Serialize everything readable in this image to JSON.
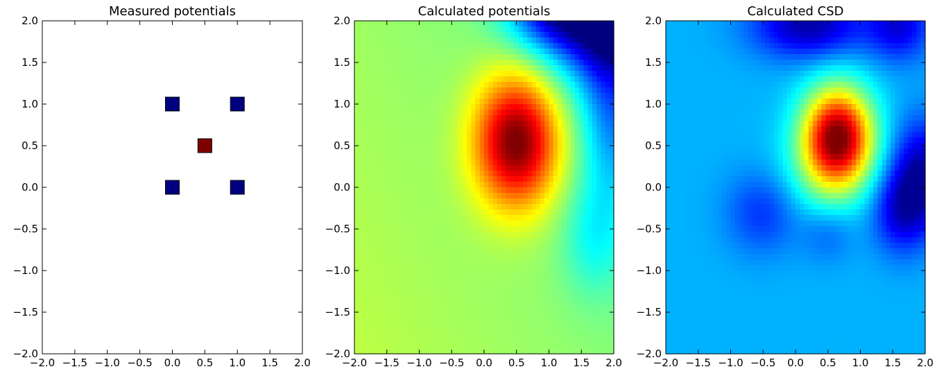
{
  "colormap": "jet",
  "chart_data": [
    {
      "type": "scatter",
      "title": "Measured potentials",
      "xlim": [
        -2.0,
        2.0
      ],
      "ylim": [
        -2.0,
        2.0
      ],
      "x_ticks": [
        "−2.0",
        "−1.5",
        "−1.0",
        "−0.5",
        "0.0",
        "0.5",
        "1.0",
        "1.5",
        "2.0"
      ],
      "y_ticks": [
        "2.0",
        "1.5",
        "1.0",
        "0.5",
        "0.0",
        "−0.5",
        "−1.0",
        "−1.5",
        "−2.0"
      ],
      "marker": "square",
      "points": [
        {
          "x": 0.0,
          "y": 1.0,
          "value": -1,
          "color": "#000080"
        },
        {
          "x": 1.0,
          "y": 1.0,
          "value": -1,
          "color": "#000080"
        },
        {
          "x": 0.5,
          "y": 0.5,
          "value": 1,
          "color": "#800000"
        },
        {
          "x": 0.0,
          "y": 0.0,
          "value": -1,
          "color": "#000080"
        },
        {
          "x": 1.0,
          "y": 0.0,
          "value": -1,
          "color": "#000080"
        }
      ]
    },
    {
      "type": "heatmap",
      "title": "Calculated potentials",
      "colormap": "jet",
      "xlim": [
        -2.0,
        2.0
      ],
      "ylim": [
        -2.0,
        2.0
      ],
      "x_ticks": [
        "−2.0",
        "−1.5",
        "−1.0",
        "−0.5",
        "0.0",
        "0.5",
        "1.0",
        "1.5",
        "2.0"
      ],
      "y_ticks": [
        "2.0",
        "1.5",
        "1.0",
        "0.5",
        "0.0",
        "−0.5",
        "−1.0",
        "−1.5",
        "−2.0"
      ],
      "features": [
        {
          "kind": "peak",
          "x": 0.5,
          "y": 0.55,
          "value": 1.0
        },
        {
          "kind": "trough",
          "x": 1.9,
          "y": 1.9,
          "value": 0.0
        },
        {
          "kind": "baseline",
          "value": 0.55
        }
      ]
    },
    {
      "type": "heatmap",
      "title": "Calculated CSD",
      "colormap": "jet",
      "xlim": [
        -2.0,
        2.0
      ],
      "ylim": [
        -2.0,
        2.0
      ],
      "x_ticks": [
        "−2.0",
        "−1.5",
        "−1.0",
        "−0.5",
        "0.0",
        "0.5",
        "1.0",
        "1.5",
        "2.0"
      ],
      "y_ticks": [
        "2.0",
        "1.5",
        "1.0",
        "0.5",
        "0.0",
        "−0.5",
        "−1.0",
        "−1.5",
        "−2.0"
      ],
      "features": [
        {
          "kind": "peak",
          "x": 0.6,
          "y": 0.6,
          "value": 1.0
        },
        {
          "kind": "trough",
          "x": 0.2,
          "y": 1.9,
          "value": 0.05
        },
        {
          "kind": "trough",
          "x": 1.95,
          "y": 0.1,
          "value": 0.05
        },
        {
          "kind": "baseline",
          "value": 0.3
        }
      ]
    }
  ]
}
